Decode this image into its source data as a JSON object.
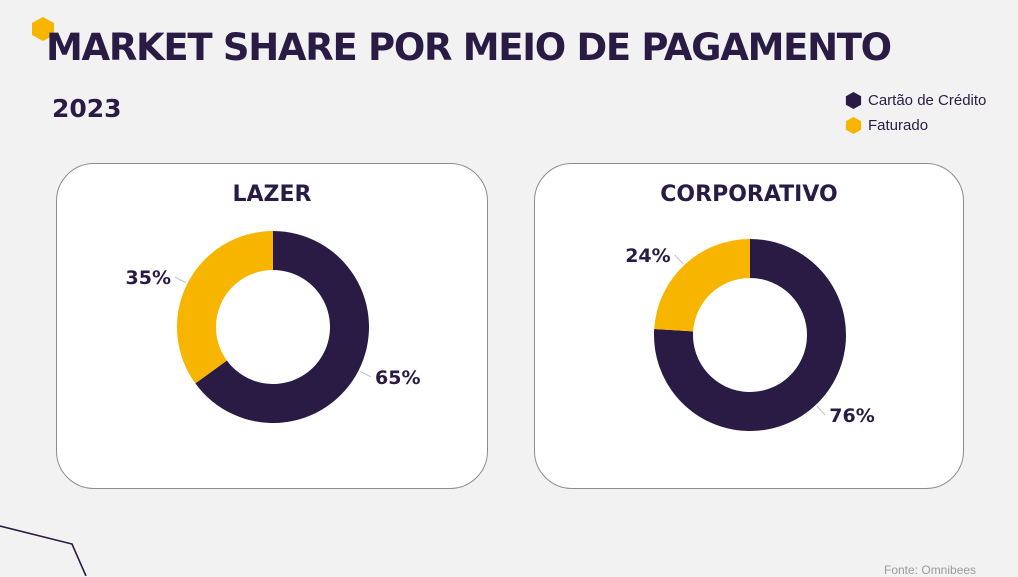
{
  "title": "MARKET SHARE POR MEIO DE PAGAMENTO",
  "subtitle": "2023",
  "legend": [
    {
      "label": "Cartão de Crédito",
      "color": "#2a1b45"
    },
    {
      "label": "Faturado",
      "color": "#f7b500"
    }
  ],
  "source": "Fonte: Omnibees",
  "colors": {
    "credit": "#2a1b45",
    "invoiced": "#f7b500",
    "accent_hex": "#f7b500"
  },
  "chart_data": [
    {
      "type": "pie",
      "title": "LAZER",
      "categories": [
        "Cartão de Crédito",
        "Faturado"
      ],
      "values": [
        65,
        35
      ],
      "labels": [
        "65%",
        "35%"
      ],
      "colors": [
        "#2a1b45",
        "#f7b500"
      ],
      "donut": true,
      "legend_position": "top-right"
    },
    {
      "type": "pie",
      "title": "CORPORATIVO",
      "categories": [
        "Cartão de Crédito",
        "Faturado"
      ],
      "values": [
        76,
        24
      ],
      "labels": [
        "76%",
        "24%"
      ],
      "colors": [
        "#2a1b45",
        "#f7b500"
      ],
      "donut": true,
      "legend_position": "top-right"
    }
  ]
}
